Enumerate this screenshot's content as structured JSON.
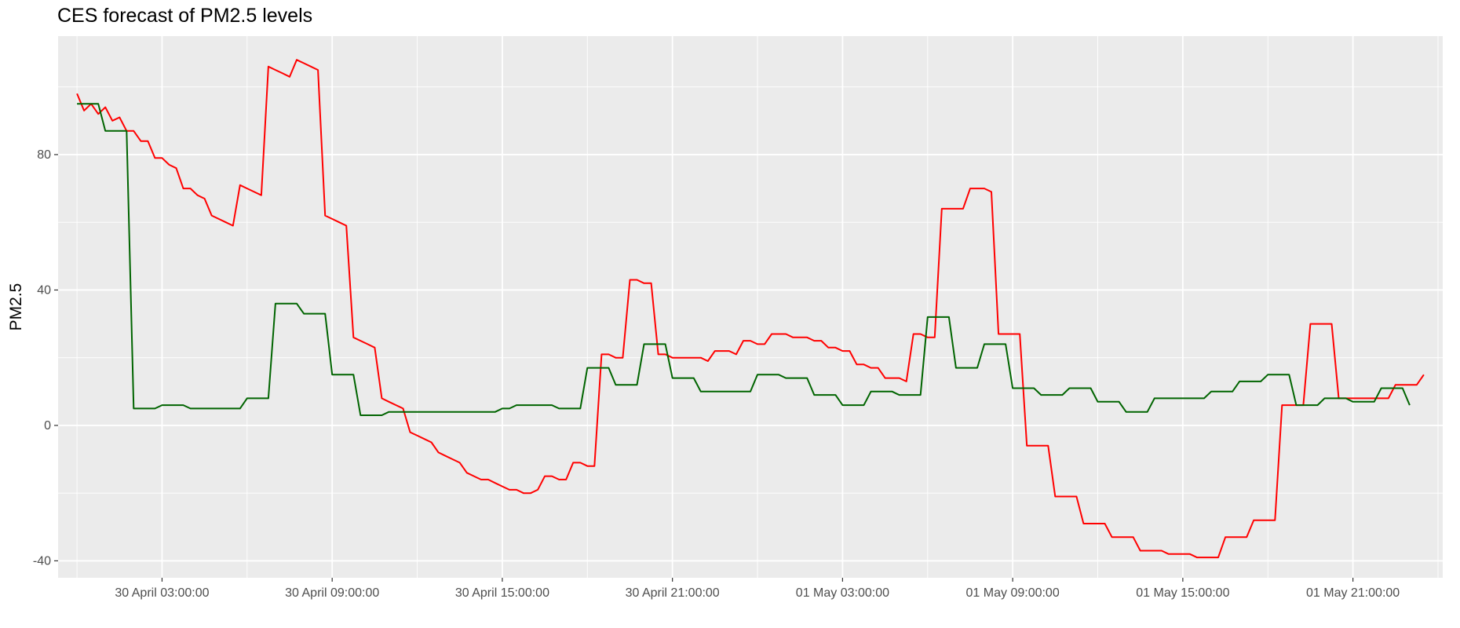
{
  "chart_data": {
    "type": "line",
    "title": "CES forecast of PM2.5 levels",
    "xlabel": "",
    "ylabel": "PM2.5",
    "x_start": "30 April 00:00:00",
    "x_step_minutes": 15,
    "x_ticks": [
      {
        "value": "30 April 03:00:00",
        "label": "30 April 03:00:00"
      },
      {
        "value": "30 April 09:00:00",
        "label": "30 April 09:00:00"
      },
      {
        "value": "30 April 15:00:00",
        "label": "30 April 15:00:00"
      },
      {
        "value": "30 April 21:00:00",
        "label": "30 April 21:00:00"
      },
      {
        "value": "01 May 03:00:00",
        "label": "01 May 03:00:00"
      },
      {
        "value": "01 May 09:00:00",
        "label": "01 May 09:00:00"
      },
      {
        "value": "01 May 15:00:00",
        "label": "01 May 15:00:00"
      },
      {
        "value": "01 May 21:00:00",
        "label": "01 May 21:00:00"
      }
    ],
    "y_ticks": [
      -40,
      0,
      40,
      80
    ],
    "ylim": [
      -45,
      115
    ],
    "xlim": [
      "29 April 23:20:00",
      "02 May 00:10:00"
    ],
    "grid": true,
    "legend": "none",
    "series": [
      {
        "color": "#ff0000",
        "values": [
          98,
          93,
          95,
          92,
          94,
          90,
          91,
          87,
          87,
          84,
          84,
          79,
          79,
          77,
          76,
          70,
          70,
          68,
          67,
          62,
          61,
          60,
          59,
          71,
          70,
          69,
          68,
          106,
          105,
          104,
          103,
          108,
          107,
          106,
          105,
          62,
          61,
          60,
          59,
          26,
          25,
          24,
          23,
          8,
          7,
          6,
          5,
          -2,
          -3,
          -4,
          -5,
          -8,
          -9,
          -10,
          -11,
          -14,
          -15,
          -16,
          -16,
          -17,
          -18,
          -19,
          -19,
          -20,
          -20,
          -19,
          -15,
          -15,
          -16,
          -16,
          -11,
          -11,
          -12,
          -12,
          21,
          21,
          20,
          20,
          43,
          43,
          42,
          42,
          21,
          21,
          20,
          20,
          20,
          20,
          20,
          19,
          22,
          22,
          22,
          21,
          25,
          25,
          24,
          24,
          27,
          27,
          27,
          26,
          26,
          26,
          25,
          25,
          23,
          23,
          22,
          22,
          18,
          18,
          17,
          17,
          14,
          14,
          14,
          13,
          27,
          27,
          26,
          26,
          64,
          64,
          64,
          64,
          70,
          70,
          70,
          69,
          27,
          27,
          27,
          27,
          -6,
          -6,
          -6,
          -6,
          -21,
          -21,
          -21,
          -21,
          -29,
          -29,
          -29,
          -29,
          -33,
          -33,
          -33,
          -33,
          -37,
          -37,
          -37,
          -37,
          -38,
          -38,
          -38,
          -38,
          -39,
          -39,
          -39,
          -39,
          -33,
          -33,
          -33,
          -33,
          -28,
          -28,
          -28,
          -28,
          6,
          6,
          6,
          6,
          30,
          30,
          30,
          30,
          8,
          8,
          8,
          8,
          8,
          8,
          8,
          8,
          12,
          12,
          12,
          12,
          15
        ]
      },
      {
        "color": "#006400",
        "values": [
          95,
          95,
          95,
          95,
          87,
          87,
          87,
          87,
          5,
          5,
          5,
          5,
          6,
          6,
          6,
          6,
          5,
          5,
          5,
          5,
          5,
          5,
          5,
          5,
          8,
          8,
          8,
          8,
          36,
          36,
          36,
          36,
          33,
          33,
          33,
          33,
          15,
          15,
          15,
          15,
          3,
          3,
          3,
          3,
          4,
          4,
          4,
          4,
          4,
          4,
          4,
          4,
          4,
          4,
          4,
          4,
          4,
          4,
          4,
          4,
          5,
          5,
          6,
          6,
          6,
          6,
          6,
          6,
          5,
          5,
          5,
          5,
          17,
          17,
          17,
          17,
          12,
          12,
          12,
          12,
          24,
          24,
          24,
          24,
          14,
          14,
          14,
          14,
          10,
          10,
          10,
          10,
          10,
          10,
          10,
          10,
          15,
          15,
          15,
          15,
          14,
          14,
          14,
          14,
          9,
          9,
          9,
          9,
          6,
          6,
          6,
          6,
          10,
          10,
          10,
          10,
          9,
          9,
          9,
          9,
          32,
          32,
          32,
          32,
          17,
          17,
          17,
          17,
          24,
          24,
          24,
          24,
          11,
          11,
          11,
          11,
          9,
          9,
          9,
          9,
          11,
          11,
          11,
          11,
          7,
          7,
          7,
          7,
          4,
          4,
          4,
          4,
          8,
          8,
          8,
          8,
          8,
          8,
          8,
          8,
          10,
          10,
          10,
          10,
          13,
          13,
          13,
          13,
          15,
          15,
          15,
          15,
          6,
          6,
          6,
          6,
          8,
          8,
          8,
          8,
          7,
          7,
          7,
          7,
          11,
          11,
          11,
          11,
          6
        ]
      }
    ]
  }
}
